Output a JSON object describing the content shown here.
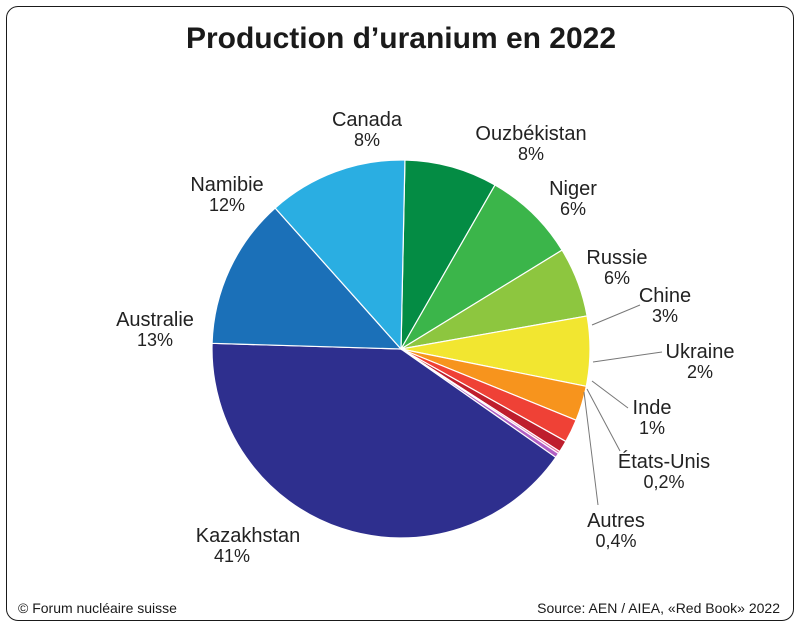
{
  "chart_data": {
    "type": "pie",
    "title": "Production d’uranium en 2022",
    "slices": [
      {
        "name": "Kazakhstan",
        "value": 41,
        "label": "41%",
        "color": "#2e2f8e"
      },
      {
        "name": "Australie",
        "value": 13,
        "label": "13%",
        "color": "#1b70b8"
      },
      {
        "name": "Namibie",
        "value": 12,
        "label": "12%",
        "color": "#2aaee2"
      },
      {
        "name": "Canada",
        "value": 8,
        "label": "8%",
        "color": "#048c44"
      },
      {
        "name": "Ouzbékistan",
        "value": 8,
        "label": "8%",
        "color": "#3bb54a"
      },
      {
        "name": "Niger",
        "value": 6,
        "label": "6%",
        "color": "#8dc63f"
      },
      {
        "name": "Russie",
        "value": 6,
        "label": "6%",
        "color": "#f2e630"
      },
      {
        "name": "Chine",
        "value": 3,
        "label": "3%",
        "color": "#f7941d"
      },
      {
        "name": "Ukraine",
        "value": 2,
        "label": "2%",
        "color": "#ef4136"
      },
      {
        "name": "Inde",
        "value": 1,
        "label": "1%",
        "color": "#be1e2d"
      },
      {
        "name": "États-Unis",
        "value": 0.2,
        "label": "0,2%",
        "color": "#e26ba0"
      },
      {
        "name": "Autres",
        "value": 0.4,
        "label": "0,4%",
        "color": "#b25fc4"
      }
    ]
  },
  "footer": {
    "credit": "© Forum nucléaire suisse",
    "source": "Source: AEN / AIEA, «Red Book» 2022"
  }
}
